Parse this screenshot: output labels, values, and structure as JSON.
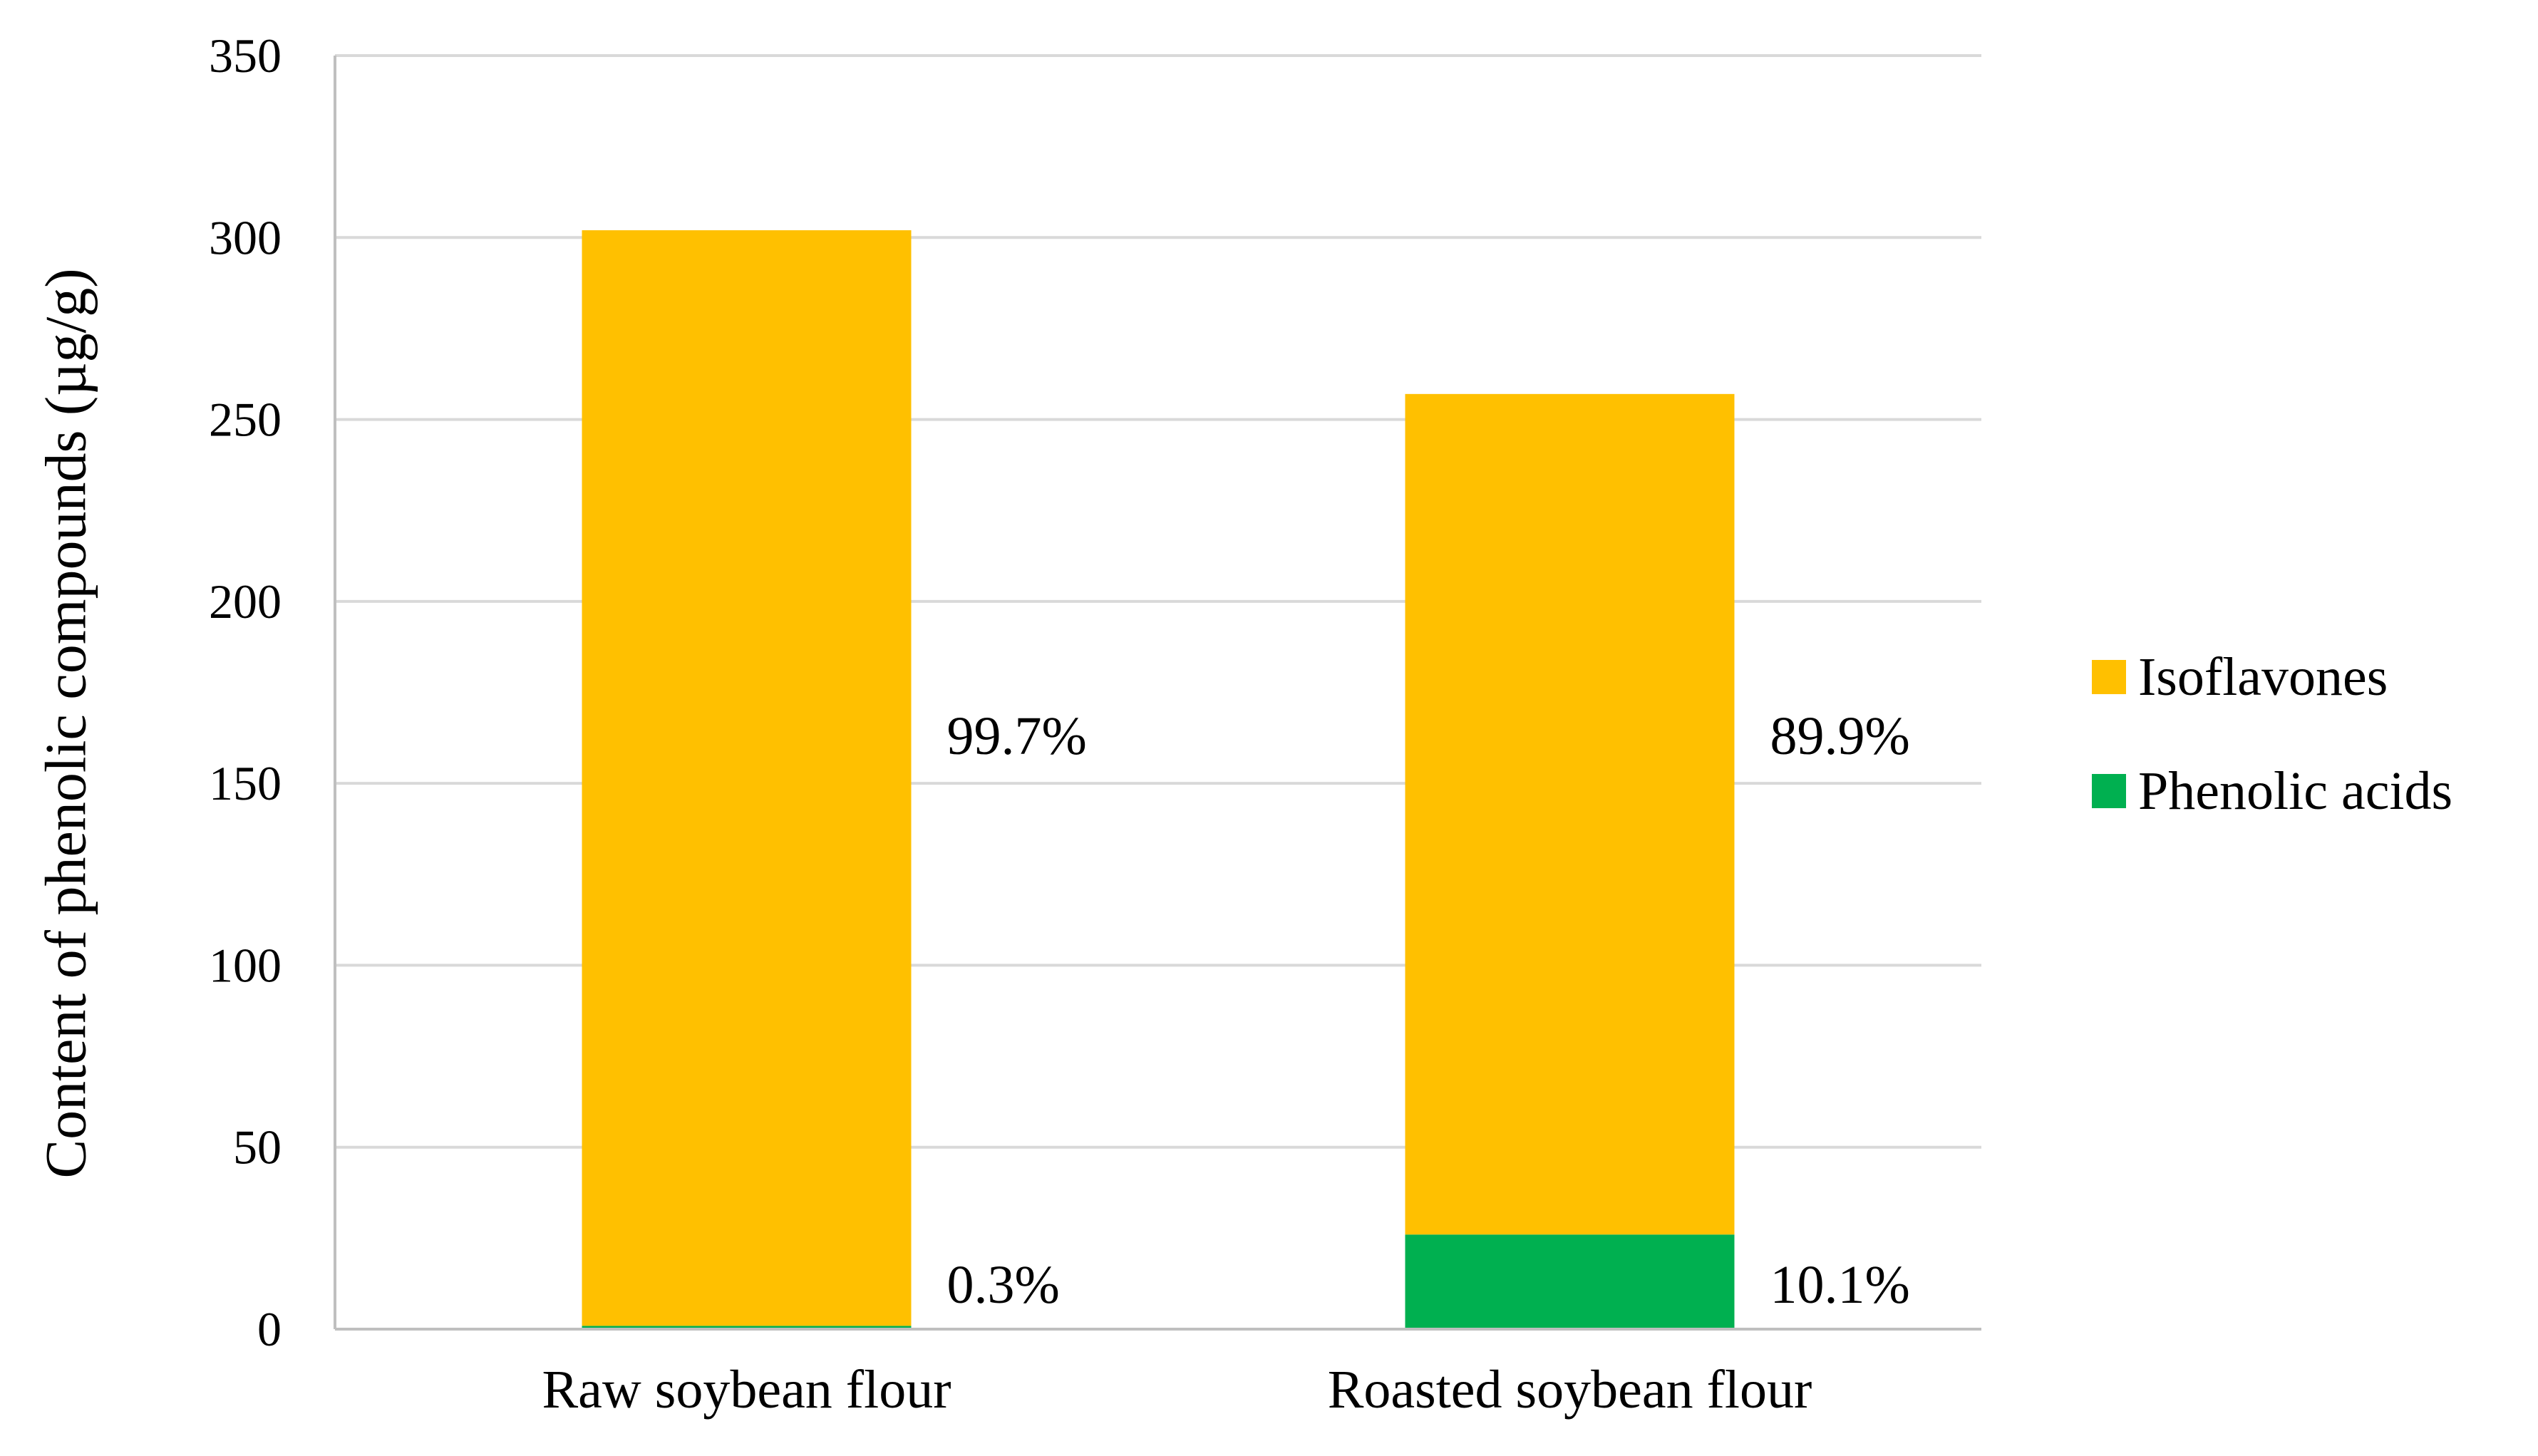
{
  "chart_data": {
    "type": "bar",
    "stacked": true,
    "categories": [
      "Raw soybean flour",
      "Roasted soybean flour"
    ],
    "series": [
      {
        "name": "Phenolic acids",
        "color": "#00b050",
        "values": [
          0.9,
          26
        ],
        "labels": [
          "0.3%",
          "10.1%"
        ]
      },
      {
        "name": "Isoflavones",
        "color": "#ffc000",
        "values": [
          301.1,
          231
        ],
        "labels": [
          "99.7%",
          "89.9%"
        ]
      }
    ],
    "ylabel": "Content of phenolic compounds (µg/g)",
    "ylim": [
      0,
      350
    ],
    "yticks": [
      0,
      50,
      100,
      150,
      200,
      250,
      300,
      350
    ],
    "grid": true,
    "legend_position": "right",
    "legend_order": [
      "Isoflavones",
      "Phenolic acids"
    ]
  }
}
